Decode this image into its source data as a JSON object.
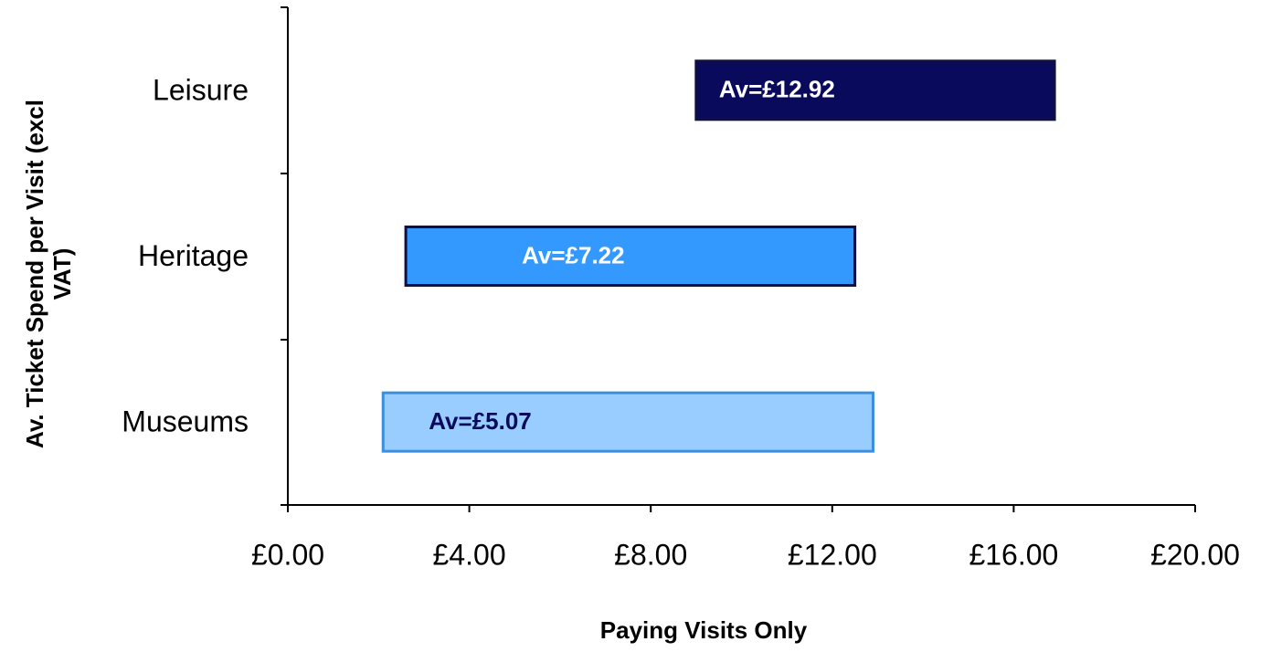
{
  "chart_data": {
    "type": "floating_bar",
    "categories": [
      "Leisure",
      "Heritage",
      "Museums"
    ],
    "low": [
      9.0,
      2.6,
      2.1
    ],
    "high": [
      16.9,
      12.5,
      12.9
    ],
    "colors": [
      "#0a0a5c",
      "#3399ff",
      "#99ccff"
    ],
    "annotations": [
      "Av=£12.92",
      "Av=£7.22",
      "Av=£5.07"
    ],
    "annotation_colors": [
      "#ffffff",
      "#ffffff",
      "#0a0a5c"
    ],
    "xlim": [
      0,
      20
    ],
    "xticks": [
      {
        "value": 0,
        "label": "£0.00"
      },
      {
        "value": 4,
        "label": "£4.00"
      },
      {
        "value": 8,
        "label": "£8.00"
      },
      {
        "value": 12,
        "label": "£12.00"
      },
      {
        "value": 16,
        "label": "£16.00"
      },
      {
        "value": 20,
        "label": "£20.00"
      }
    ],
    "x_label": "Paying Visits Only",
    "y_label": [
      "Av. Ticket  Spend per Visit (excl",
      "VAT)"
    ]
  }
}
